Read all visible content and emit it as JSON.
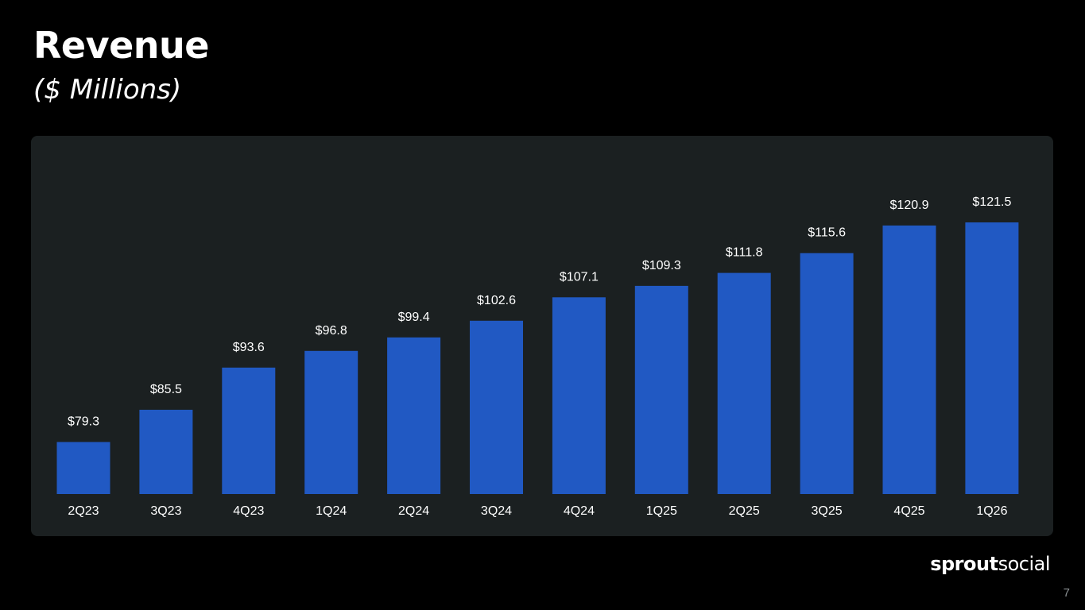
{
  "slide": {
    "title": "Revenue",
    "subtitle": "($ Millions)",
    "page_number": "7"
  },
  "brand": {
    "logo_bold": "sprout",
    "logo_light": "social"
  },
  "colors": {
    "background": "#000000",
    "panel": "#1b2021",
    "bar": "#2159c3",
    "text": "#ffffff"
  },
  "chart_data": {
    "type": "bar",
    "categories": [
      "2Q23",
      "3Q23",
      "4Q23",
      "1Q24",
      "2Q24",
      "3Q24",
      "4Q24",
      "1Q25",
      "2Q25",
      "3Q25",
      "4Q25",
      "1Q26"
    ],
    "values": [
      79.3,
      85.5,
      93.6,
      96.8,
      99.4,
      102.6,
      107.1,
      109.3,
      111.8,
      115.6,
      120.9,
      121.5
    ],
    "data_labels": [
      "$79.3",
      "$85.5",
      "$93.6",
      "$96.8",
      "$99.4",
      "$102.6",
      "$107.1",
      "$109.3",
      "$111.8",
      "$115.6",
      "$120.9",
      "$121.5"
    ],
    "title": "Revenue",
    "subtitle": "($ Millions)",
    "xlabel": "",
    "ylabel": "",
    "ylim": [
      69.3,
      121.5
    ],
    "grid": false,
    "legend": "none"
  }
}
